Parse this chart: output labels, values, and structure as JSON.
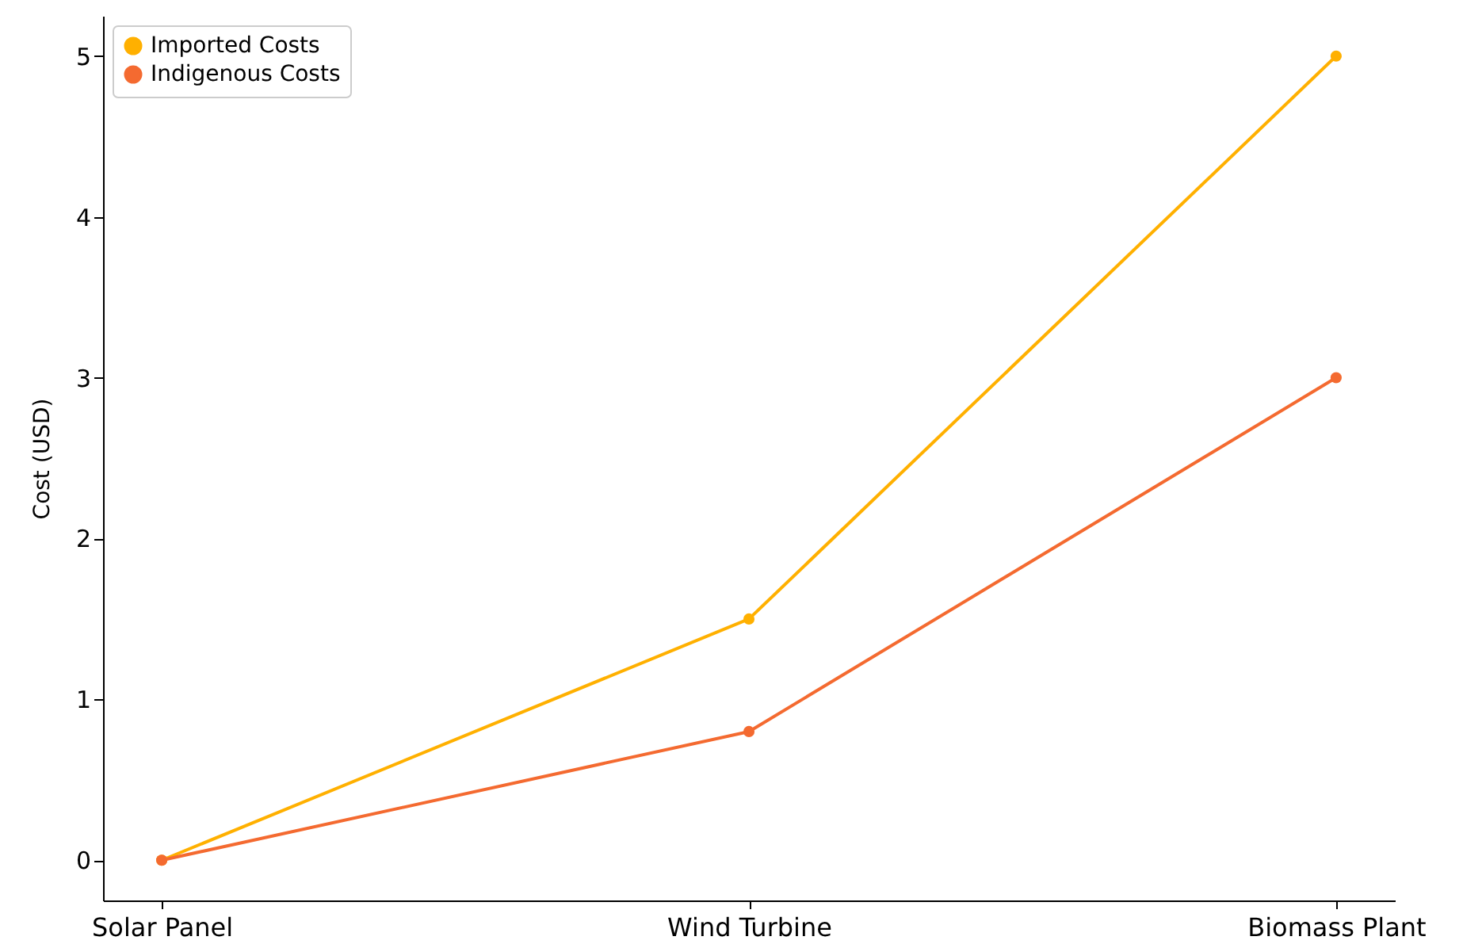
{
  "chart_data": {
    "type": "line",
    "categories": [
      "Solar Panel",
      "Wind Turbine",
      "Biomass Plant"
    ],
    "ylabel": "Cost (USD)",
    "series": [
      {
        "name": "Imported Costs",
        "color": "#ffb000",
        "values": [
          0,
          1.5,
          5
        ]
      },
      {
        "name": "Indigenous Costs",
        "color": "#f46a30",
        "values": [
          0,
          0.8,
          3
        ]
      }
    ],
    "ylim": [
      -0.25,
      5.25
    ],
    "yticks": [
      0,
      1,
      2,
      3,
      4,
      5
    ],
    "grid": false,
    "legend": "top left",
    "marker": "circle",
    "line_style": "solid"
  }
}
